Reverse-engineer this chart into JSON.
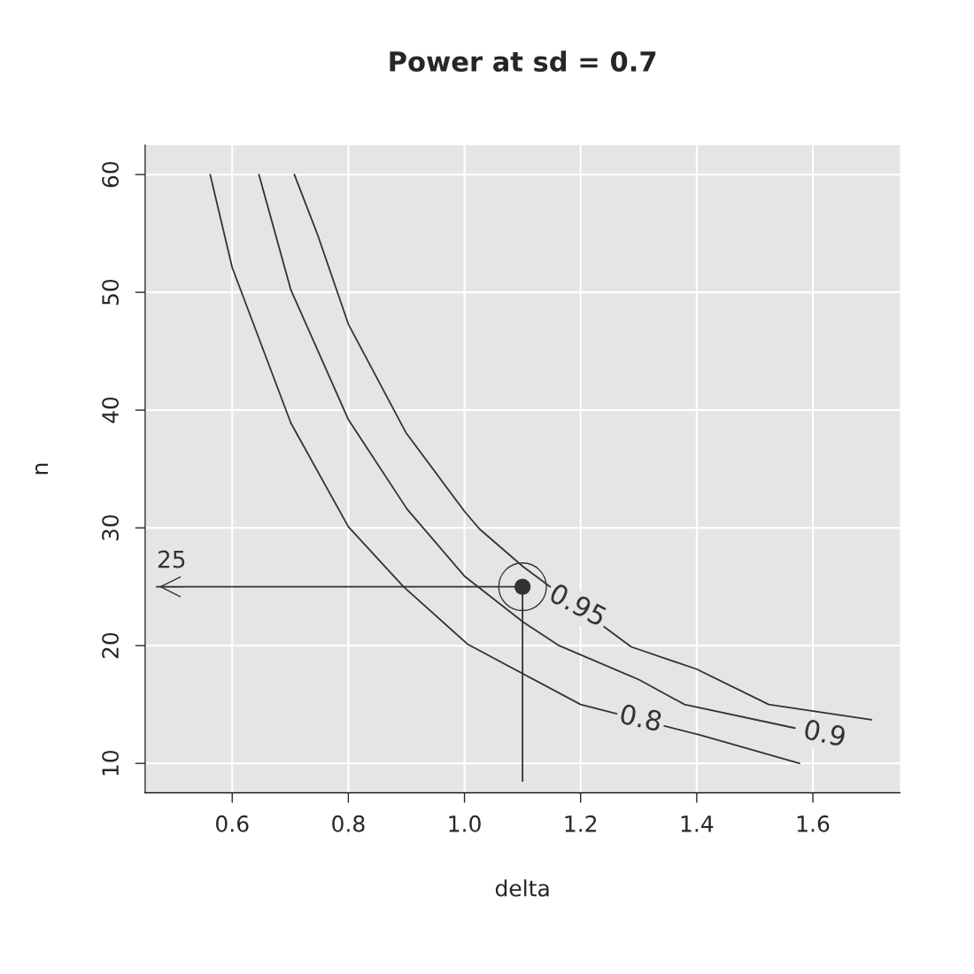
{
  "chart_data": {
    "type": "line",
    "title": "Power at sd = 0.7",
    "xlabel": "delta",
    "ylabel": "n",
    "xlim": [
      0.45,
      1.75
    ],
    "ylim": [
      7.5,
      62.5
    ],
    "xticks": [
      0.6,
      0.8,
      {
        "value": 1.0,
        "label": "1.0"
      },
      1.2,
      1.4,
      1.6
    ],
    "yticks": [
      10,
      20,
      30,
      40,
      50,
      60
    ],
    "grid": true,
    "series": [
      {
        "color": "#333333",
        "x": [
          0.562,
          0.6,
          0.701,
          0.8,
          0.895,
          1.006,
          1.2,
          1.406,
          1.577
        ],
        "values": [
          60,
          52.1,
          38.9,
          30.1,
          25,
          20.1,
          15,
          12.4,
          10
        ]
      },
      {
        "color": "#333333",
        "x": [
          0.646,
          0.701,
          0.747,
          0.8,
          0.901,
          1.0,
          1.101,
          1.163,
          1.301,
          1.379,
          1.569
        ],
        "values": [
          60,
          50.2,
          45.1,
          39.2,
          31.6,
          25.9,
          22.0,
          20,
          17.1,
          15,
          13
        ]
      },
      {
        "color": "#333333",
        "x": [
          0.707,
          0.747,
          0.8,
          0.899,
          1.0,
          1.026,
          1.101,
          1.287,
          1.4,
          1.524,
          1.701
        ],
        "values": [
          60,
          54.9,
          47.3,
          38.1,
          31.4,
          29.9,
          26.7,
          19.9,
          18.0,
          15,
          13.7
        ]
      },
      {
        "color": "#333333",
        "x": [
          0.47,
          1.1,
          1.1
        ],
        "values": [
          25,
          25,
          8.5
        ]
      },
      {
        "type": "scatter",
        "marker": "circle",
        "color": "#333333",
        "x": [
          1.1
        ],
        "values": [
          25
        ]
      }
    ],
    "annotations": [
      "0.8",
      "0.9",
      "0.95",
      "25"
    ]
  }
}
